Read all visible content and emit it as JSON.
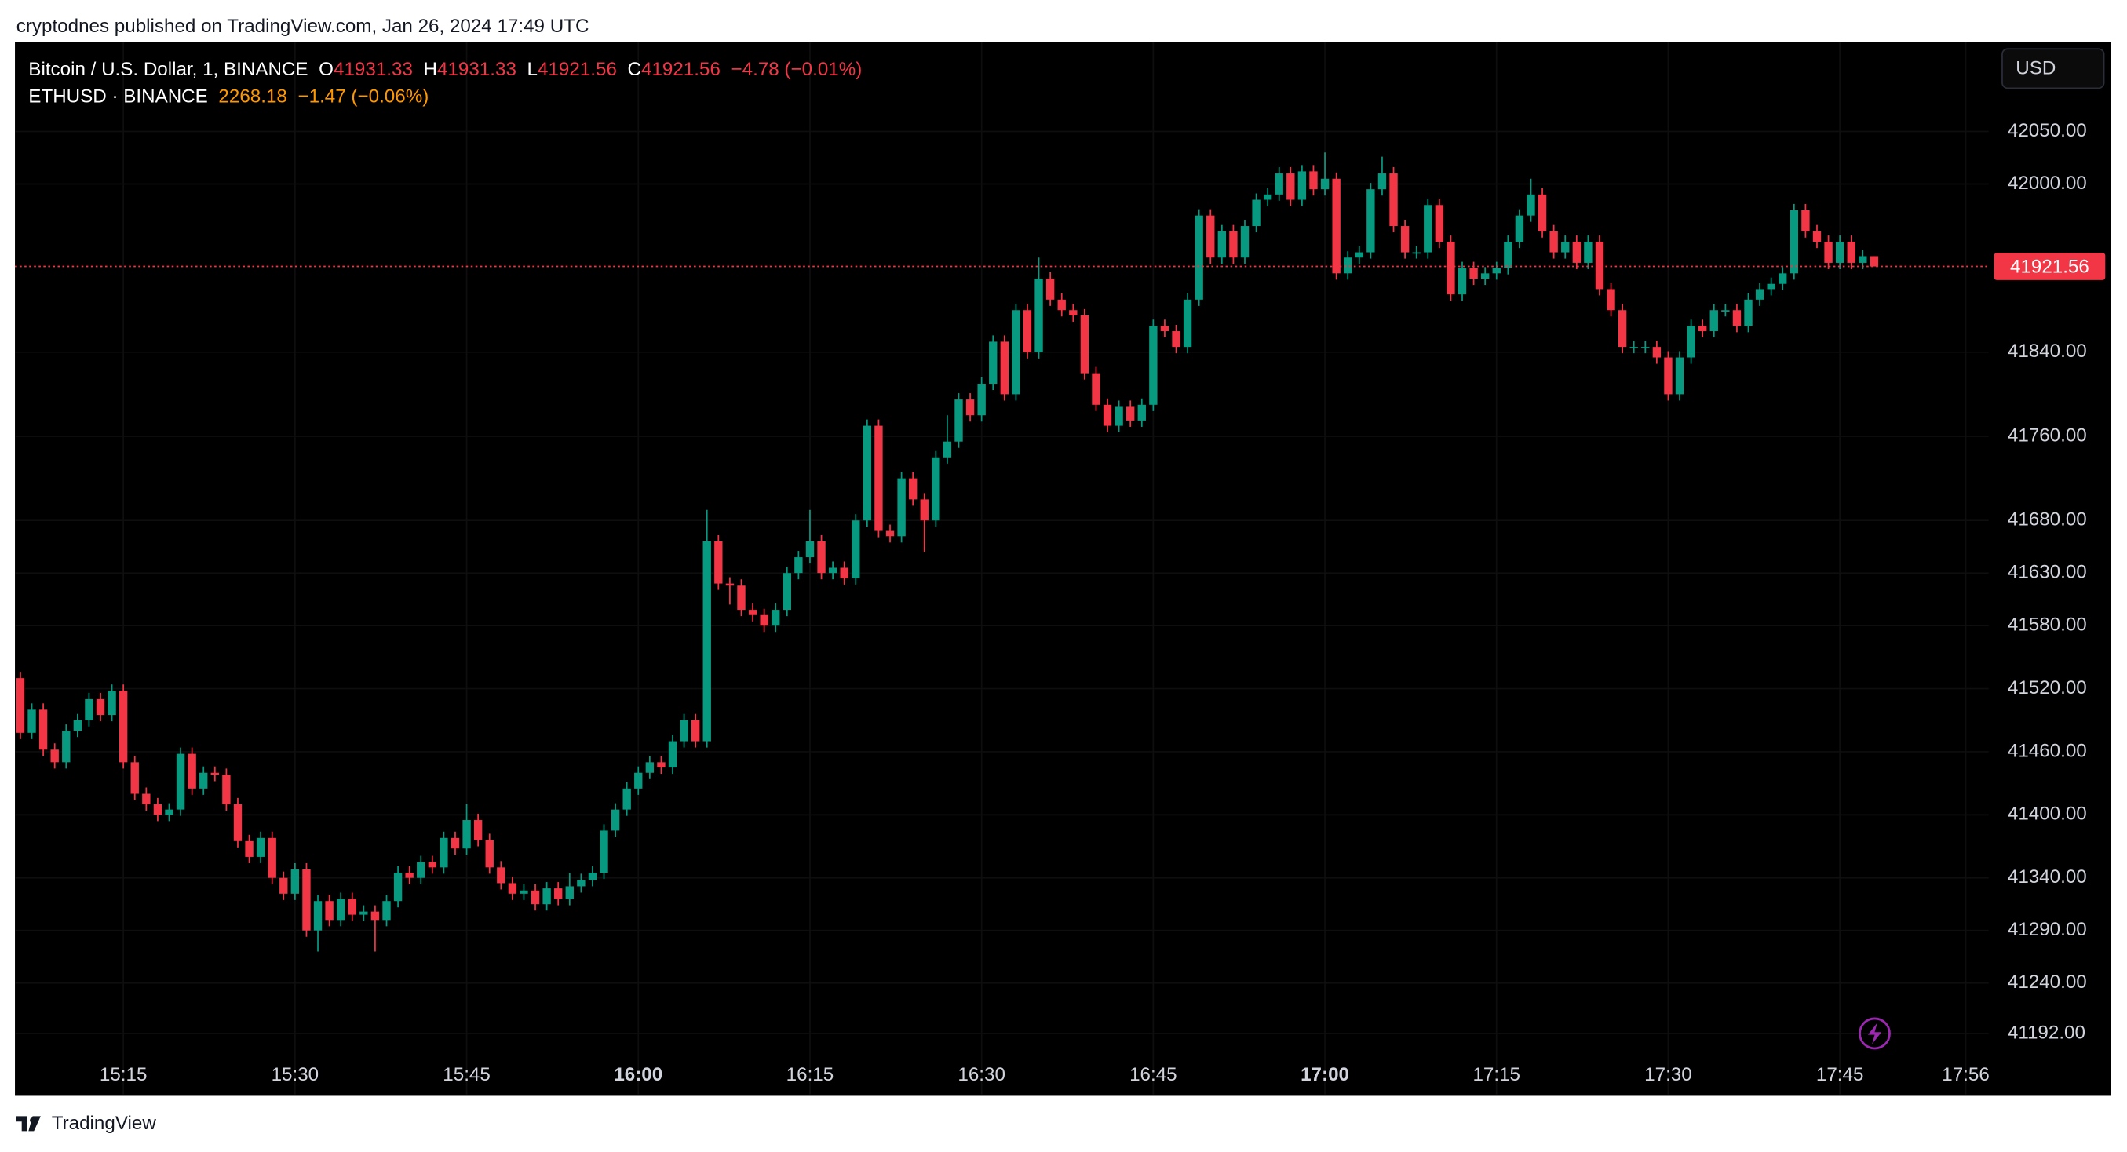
{
  "page": {
    "attribution": "cryptodnes published on TradingView.com, Jan 26, 2024 17:49 UTC",
    "footer": "TradingView",
    "currency_button": "USD"
  },
  "header": {
    "symbol": "Bitcoin / U.S. Dollar, 1, BINANCE",
    "ohlc_labels": [
      "O",
      "H",
      "L",
      "C"
    ],
    "ohlc_values": [
      41931.33,
      41931.33,
      41921.56,
      41921.56
    ],
    "change": "−4.78 (−0.01%)",
    "compare_symbol": "ETHUSD · BINANCE",
    "compare_value": 2268.18,
    "compare_change": "−1.47 (−0.06%)"
  },
  "chart_data": {
    "type": "candlestick",
    "up_color": "#089981",
    "down_color": "#f23645",
    "last_price": 41921.56,
    "ylim": [
      41134,
      42135
    ],
    "xlim": [
      "15:06",
      "17:58"
    ],
    "yticks": [
      {
        "value": 42050,
        "label": "42050.00"
      },
      {
        "value": 42000,
        "label": "42000.00"
      },
      {
        "value": 41840,
        "label": "41840.00"
      },
      {
        "value": 41760,
        "label": "41760.00"
      },
      {
        "value": 41680,
        "label": "41680.00"
      },
      {
        "value": 41630,
        "label": "41630.00"
      },
      {
        "value": 41580,
        "label": "41580.00"
      },
      {
        "value": 41520,
        "label": "41520.00"
      },
      {
        "value": 41460,
        "label": "41460.00"
      },
      {
        "value": 41400,
        "label": "41400.00"
      },
      {
        "value": 41340,
        "label": "41340.00"
      },
      {
        "value": 41290,
        "label": "41290.00"
      },
      {
        "value": 41240,
        "label": "41240.00"
      },
      {
        "value": 41192,
        "label": "41192.00"
      }
    ],
    "xticks": [
      "15:15",
      "15:30",
      "15:45",
      "16:00",
      "16:15",
      "16:30",
      "16:45",
      "17:00",
      "17:15",
      "17:30",
      "17:45",
      "17:56"
    ],
    "x": [
      "15:06",
      "15:07",
      "15:08",
      "15:09",
      "15:10",
      "15:11",
      "15:12",
      "15:13",
      "15:14",
      "15:15",
      "15:16",
      "15:17",
      "15:18",
      "15:19",
      "15:20",
      "15:21",
      "15:22",
      "15:23",
      "15:24",
      "15:25",
      "15:26",
      "15:27",
      "15:28",
      "15:29",
      "15:30",
      "15:31",
      "15:32",
      "15:33",
      "15:34",
      "15:35",
      "15:36",
      "15:37",
      "15:38",
      "15:39",
      "15:40",
      "15:41",
      "15:42",
      "15:43",
      "15:44",
      "15:45",
      "15:46",
      "15:47",
      "15:48",
      "15:49",
      "15:50",
      "15:51",
      "15:52",
      "15:53",
      "15:54",
      "15:55",
      "15:56",
      "15:57",
      "15:58",
      "15:59",
      "16:00",
      "16:01",
      "16:02",
      "16:03",
      "16:04",
      "16:05",
      "16:06",
      "16:07",
      "16:08",
      "16:09",
      "16:10",
      "16:11",
      "16:12",
      "16:13",
      "16:14",
      "16:15",
      "16:16",
      "16:17",
      "16:18",
      "16:19",
      "16:20",
      "16:21",
      "16:22",
      "16:23",
      "16:24",
      "16:25",
      "16:26",
      "16:27",
      "16:28",
      "16:29",
      "16:30",
      "16:31",
      "16:32",
      "16:33",
      "16:34",
      "16:35",
      "16:36",
      "16:37",
      "16:38",
      "16:39",
      "16:40",
      "16:41",
      "16:42",
      "16:43",
      "16:44",
      "16:45",
      "16:46",
      "16:47",
      "16:48",
      "16:49",
      "16:50",
      "16:51",
      "16:52",
      "16:53",
      "16:54",
      "16:55",
      "16:56",
      "16:57",
      "16:58",
      "16:59",
      "17:00",
      "17:01",
      "17:02",
      "17:03",
      "17:04",
      "17:05",
      "17:06",
      "17:07",
      "17:08",
      "17:09",
      "17:10",
      "17:11",
      "17:12",
      "17:13",
      "17:14",
      "17:15",
      "17:16",
      "17:17",
      "17:18",
      "17:19",
      "17:20",
      "17:21",
      "17:22",
      "17:23",
      "17:24",
      "17:25",
      "17:26",
      "17:27",
      "17:28",
      "17:29",
      "17:30",
      "17:31",
      "17:32",
      "17:33",
      "17:34",
      "17:35",
      "17:36",
      "17:37",
      "17:38",
      "17:39",
      "17:40",
      "17:41",
      "17:42",
      "17:43",
      "17:44",
      "17:45",
      "17:46",
      "17:47",
      "17:48"
    ],
    "open": [
      41530,
      41478,
      41500,
      41462,
      41450,
      41480,
      41490,
      41510,
      41495,
      41518,
      41450,
      41420,
      41410,
      41400,
      41405,
      41458,
      41425,
      41440,
      41438,
      41410,
      41375,
      41360,
      41378,
      41340,
      41325,
      41348,
      41290,
      41318,
      41300,
      41320,
      41305,
      41308,
      41300,
      41318,
      41345,
      41340,
      41355,
      41350,
      41378,
      41368,
      41395,
      41376,
      41350,
      41335,
      41325,
      41328,
      41315,
      41330,
      41320,
      41332,
      41338,
      41345,
      41385,
      41405,
      41425,
      41440,
      41450,
      41445,
      41470,
      41490,
      41470,
      41660,
      41620,
      41618,
      41595,
      41590,
      41580,
      41595,
      41630,
      41645,
      41660,
      41630,
      41635,
      41625,
      41680,
      41770,
      41670,
      41665,
      41720,
      41700,
      41680,
      41740,
      41755,
      41795,
      41780,
      41810,
      41850,
      41800,
      41880,
      41840,
      41910,
      41890,
      41880,
      41875,
      41820,
      41790,
      41770,
      41788,
      41775,
      41790,
      41865,
      41860,
      41845,
      41890,
      41970,
      41930,
      41955,
      41930,
      41960,
      41985,
      41990,
      42010,
      41985,
      42012,
      41995,
      42005,
      41915,
      41930,
      41935,
      41995,
      42010,
      41960,
      41935,
      41935,
      41980,
      41945,
      41895,
      41920,
      41910,
      41915,
      41920,
      41945,
      41970,
      41990,
      41955,
      41935,
      41945,
      41925,
      41945,
      41900,
      41880,
      41845,
      41845,
      41845,
      41835,
      41800,
      41835,
      41865,
      41860,
      41880,
      41880,
      41865,
      41890,
      41900,
      41905,
      41915,
      41975,
      41955,
      41945,
      41925,
      41945,
      41925,
      41931.33
    ],
    "high": [
      41536,
      41506,
      41506,
      41468,
      41486,
      41496,
      41516,
      41516,
      41524,
      41524,
      41456,
      41426,
      41416,
      41411,
      41464,
      41464,
      41446,
      41446,
      41444,
      41416,
      41381,
      41384,
      41384,
      41346,
      41354,
      41354,
      41324,
      41324,
      41326,
      41326,
      41314,
      41314,
      41324,
      41351,
      41351,
      41361,
      41361,
      41384,
      41384,
      41410,
      41401,
      41382,
      41356,
      41341,
      41334,
      41334,
      41336,
      41336,
      41345,
      41344,
      41351,
      41391,
      41411,
      41431,
      41446,
      41456,
      41456,
      41476,
      41496,
      41496,
      41690,
      41666,
      41626,
      41624,
      41601,
      41596,
      41601,
      41636,
      41651,
      41690,
      41666,
      41641,
      41641,
      41686,
      41776,
      41776,
      41676,
      41726,
      41726,
      41706,
      41746,
      41780,
      41801,
      41801,
      41816,
      41856,
      41856,
      41886,
      41886,
      41930,
      41916,
      41896,
      41886,
      41881,
      41826,
      41796,
      41794,
      41794,
      41796,
      41871,
      41871,
      41866,
      41896,
      41976,
      41976,
      41961,
      41961,
      41966,
      41991,
      41996,
      42016,
      42016,
      42018,
      42018,
      42030,
      42011,
      41936,
      41941,
      42001,
      42026,
      42016,
      41966,
      41941,
      41986,
      41986,
      41951,
      41926,
      41926,
      41921,
      41926,
      41951,
      41976,
      42005,
      41996,
      41961,
      41951,
      41951,
      41951,
      41951,
      41906,
      41886,
      41851,
      41851,
      41851,
      41841,
      41841,
      41871,
      41871,
      41886,
      41886,
      41886,
      41896,
      41906,
      41911,
      41921,
      41981,
      41981,
      41961,
      41951,
      41951,
      41951,
      41937,
      41931.33
    ],
    "low": [
      41472,
      41472,
      41456,
      41444,
      41444,
      41474,
      41484,
      41489,
      41489,
      41444,
      41414,
      41404,
      41394,
      41394,
      41399,
      41419,
      41419,
      41432,
      41404,
      41369,
      41354,
      41354,
      41334,
      41319,
      41319,
      41284,
      41270,
      41294,
      41294,
      41299,
      41299,
      41270,
      41294,
      41312,
      41334,
      41334,
      41344,
      41344,
      41362,
      41362,
      41370,
      41344,
      41329,
      41319,
      41319,
      41309,
      41309,
      41314,
      41314,
      41326,
      41332,
      41339,
      41379,
      41399,
      41419,
      41434,
      41439,
      41439,
      41464,
      41464,
      41464,
      41614,
      41600,
      41589,
      41584,
      41574,
      41574,
      41589,
      41624,
      41639,
      41624,
      41624,
      41619,
      41619,
      41674,
      41664,
      41659,
      41659,
      41694,
      41650,
      41674,
      41734,
      41749,
      41774,
      41774,
      41804,
      41794,
      41794,
      41834,
      41834,
      41884,
      41874,
      41869,
      41814,
      41784,
      41764,
      41764,
      41769,
      41769,
      41784,
      41854,
      41839,
      41839,
      41884,
      41924,
      41924,
      41924,
      41924,
      41954,
      41979,
      41984,
      41979,
      41979,
      41989,
      41989,
      41909,
      41909,
      41924,
      41929,
      41989,
      41954,
      41929,
      41929,
      41929,
      41939,
      41889,
      41889,
      41904,
      41904,
      41909,
      41914,
      41939,
      41964,
      41949,
      41929,
      41929,
      41919,
      41919,
      41894,
      41874,
      41839,
      41839,
      41839,
      41829,
      41794,
      41794,
      41829,
      41854,
      41854,
      41874,
      41859,
      41859,
      41884,
      41894,
      41899,
      41909,
      41949,
      41939,
      41919,
      41919,
      41919,
      41919,
      41921.56
    ],
    "close": [
      41478,
      41500,
      41462,
      41450,
      41480,
      41490,
      41510,
      41495,
      41518,
      41450,
      41420,
      41410,
      41400,
      41405,
      41458,
      41425,
      41440,
      41438,
      41410,
      41375,
      41360,
      41378,
      41340,
      41325,
      41348,
      41290,
      41318,
      41300,
      41320,
      41305,
      41308,
      41300,
      41318,
      41345,
      41340,
      41355,
      41350,
      41378,
      41368,
      41395,
      41376,
      41350,
      41335,
      41325,
      41328,
      41315,
      41330,
      41320,
      41332,
      41338,
      41345,
      41385,
      41405,
      41425,
      41440,
      41450,
      41445,
      41470,
      41490,
      41470,
      41660,
      41620,
      41618,
      41595,
      41590,
      41580,
      41595,
      41630,
      41645,
      41660,
      41630,
      41635,
      41625,
      41680,
      41770,
      41670,
      41665,
      41720,
      41700,
      41680,
      41740,
      41755,
      41795,
      41780,
      41810,
      41850,
      41800,
      41880,
      41840,
      41910,
      41890,
      41880,
      41875,
      41820,
      41790,
      41770,
      41788,
      41775,
      41790,
      41865,
      41860,
      41845,
      41890,
      41970,
      41930,
      41955,
      41930,
      41960,
      41985,
      41990,
      42010,
      41985,
      42012,
      41995,
      42005,
      41915,
      41930,
      41935,
      41995,
      42010,
      41960,
      41935,
      41935,
      41980,
      41945,
      41895,
      41920,
      41910,
      41915,
      41920,
      41945,
      41970,
      41990,
      41955,
      41935,
      41945,
      41925,
      41945,
      41900,
      41880,
      41845,
      41845,
      41845,
      41835,
      41800,
      41835,
      41865,
      41860,
      41880,
      41880,
      41865,
      41890,
      41900,
      41905,
      41915,
      41975,
      41955,
      41945,
      41925,
      41945,
      41925,
      41931.33,
      41921.56
    ]
  }
}
